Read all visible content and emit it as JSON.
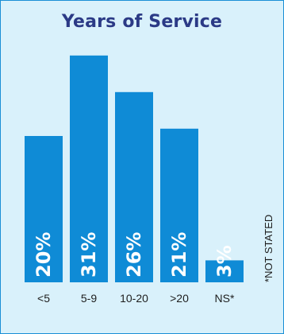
{
  "chart_data": {
    "type": "bar",
    "title": "Years of Service",
    "categories": [
      "<5",
      "5-9",
      "10-20",
      ">20",
      "NS*"
    ],
    "values": [
      20,
      31,
      26,
      21,
      3
    ],
    "value_labels": [
      "20%",
      "31%",
      "26%",
      "21%",
      "3%"
    ],
    "xlabel": "",
    "ylabel": "",
    "ylim": [
      0,
      32
    ],
    "grid": false,
    "footnote": "*NOT STATED",
    "colors": {
      "bar": "#0f8bd6",
      "background": "#d9f1fb",
      "title": "#2b3a86",
      "border": "#1a8fd6"
    }
  }
}
